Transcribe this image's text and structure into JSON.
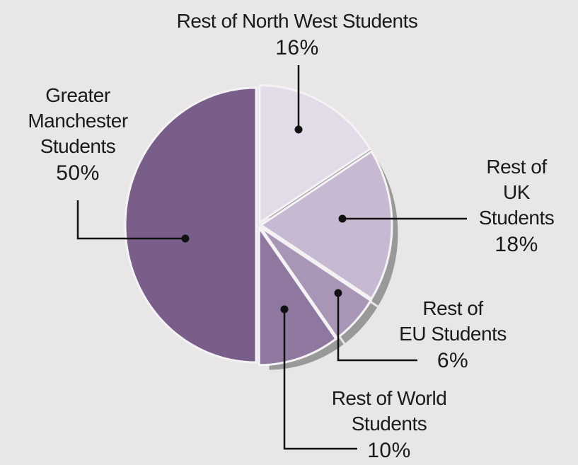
{
  "chart_data": {
    "type": "pie",
    "categories": [
      "Rest of North West Students",
      "Rest of UK\nStudents",
      "Rest of\nEU Students",
      "Rest of World\nStudents",
      "Greater\nManchester\nStudents"
    ],
    "values": [
      16,
      18,
      6,
      10,
      50
    ],
    "value_labels": [
      "16%",
      "18%",
      "6%",
      "10%",
      "50%"
    ],
    "colors": [
      "#e2dce8",
      "#c7b9d2",
      "#a996b7",
      "#8f78a0",
      "#785e88"
    ]
  }
}
